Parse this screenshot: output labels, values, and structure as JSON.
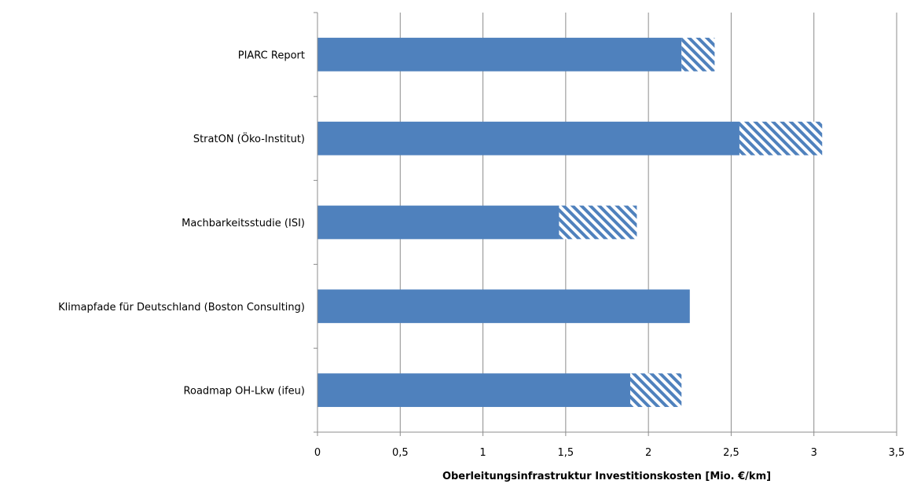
{
  "chart_data": {
    "type": "bar",
    "orientation": "horizontal",
    "stacked": true,
    "categories": [
      "PIARC Report",
      "StratON (Öko-Institut)",
      "Machbarkeitsstudie (ISI)",
      "Klimapfade für Deutschland (Boston Consulting)",
      "Roadmap OH-Lkw (ifeu)"
    ],
    "series": [
      {
        "values": [
          2.2,
          2.55,
          1.46,
          2.25,
          1.89
        ],
        "pattern": "solid"
      },
      {
        "values": [
          0.2,
          0.5,
          0.47,
          0,
          0.31
        ],
        "pattern": "hatched"
      }
    ],
    "xlabel": "Oberleitungsinfrastruktur Investitionskosten [Mio. €/km]",
    "xlim": [
      0,
      3.5
    ],
    "xticks": [
      0,
      0.5,
      1,
      1.5,
      2,
      2.5,
      3,
      3.5
    ],
    "xtick_labels": [
      "0",
      "0,5",
      "1",
      "1,5",
      "2",
      "2,5",
      "3",
      "3,5"
    ],
    "grid": "vertical",
    "bar_color": "#4F81BD"
  }
}
